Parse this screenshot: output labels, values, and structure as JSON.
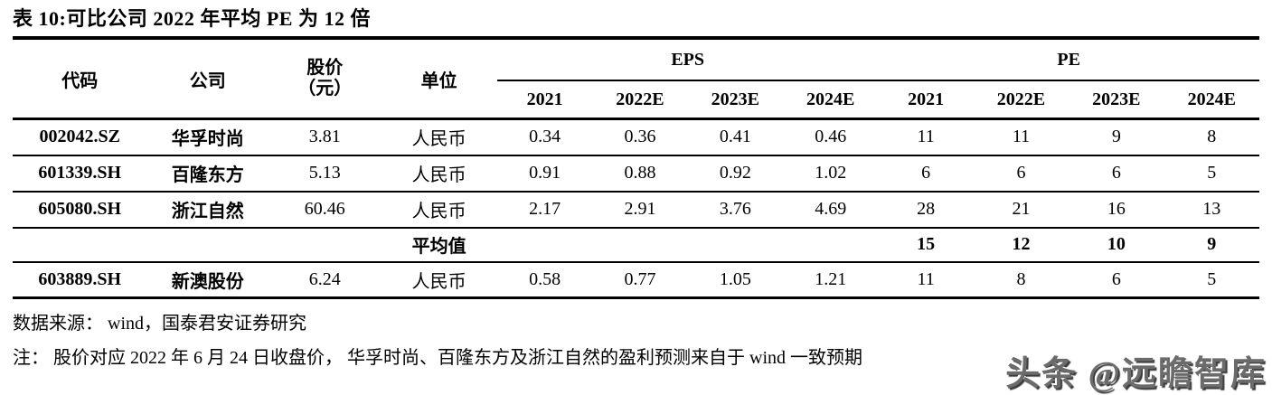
{
  "title": "表 10:可比公司 2022 年平均 PE 为 12 倍",
  "table": {
    "headers": {
      "code": "代码",
      "company": "公司",
      "price_line1": "股价",
      "price_line2": "（元）",
      "unit": "单位",
      "eps_group": "EPS",
      "pe_group": "PE"
    },
    "year_row": [
      "2021",
      "2022E",
      "2023E",
      "2024E",
      "2021",
      "2022E",
      "2023E",
      "2024E"
    ],
    "rows": [
      {
        "code": "002042.SZ",
        "company": "华孚时尚",
        "price": "3.81",
        "unit": "人民币",
        "eps": [
          "0.34",
          "0.36",
          "0.41",
          "0.46"
        ],
        "pe": [
          "11",
          "11",
          "9",
          "8"
        ],
        "emphasis": false
      },
      {
        "code": "601339.SH",
        "company": "百隆东方",
        "price": "5.13",
        "unit": "人民币",
        "eps": [
          "0.91",
          "0.88",
          "0.92",
          "1.02"
        ],
        "pe": [
          "6",
          "6",
          "6",
          "5"
        ],
        "emphasis": false
      },
      {
        "code": "605080.SH",
        "company": "浙江自然",
        "price": "60.46",
        "unit": "人民币",
        "eps": [
          "2.17",
          "2.91",
          "3.76",
          "4.69"
        ],
        "pe": [
          "28",
          "21",
          "16",
          "13"
        ],
        "emphasis": false
      },
      {
        "code": "",
        "company": "",
        "price": "",
        "unit": "平均值",
        "eps": [
          "",
          "",
          "",
          ""
        ],
        "pe": [
          "15",
          "12",
          "10",
          "9"
        ],
        "emphasis": true
      },
      {
        "code": "603889.SH",
        "company": "新澳股份",
        "price": "6.24",
        "unit": "人民币",
        "eps": [
          "0.58",
          "0.77",
          "1.05",
          "1.21"
        ],
        "pe": [
          "11",
          "8",
          "6",
          "5"
        ],
        "emphasis": false
      }
    ]
  },
  "footer": {
    "source": "数据来源： wind，国泰君安证券研究",
    "note": "注： 股价对应 2022 年 6 月 24 日收盘价， 华孚时尚、百隆东方及浙江自然的盈利预测来自于 wind 一致预期"
  },
  "watermark": "头条 @远瞻智库",
  "colors": {
    "text": "#000000",
    "background": "#ffffff",
    "rule": "#000000",
    "watermark": "#6b6b6b"
  }
}
